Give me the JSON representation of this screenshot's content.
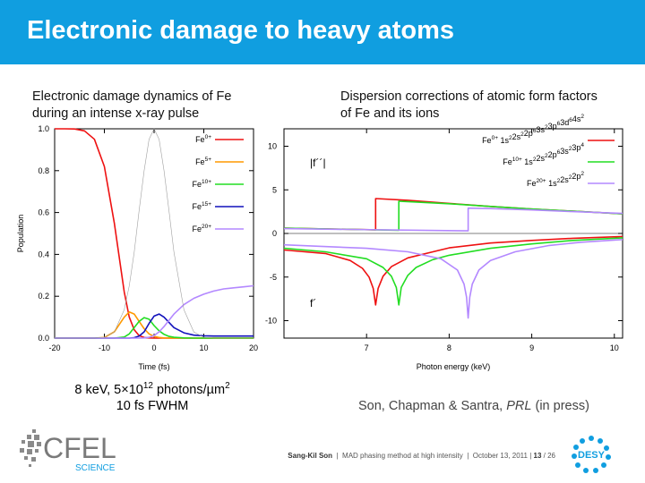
{
  "slide": {
    "title": "Electronic damage to heavy atoms",
    "left_caption": "Electronic damage dynamics of Fe during an intense x-ray pulse",
    "right_caption": "Dispersion corrections of atomic form factors of Fe and its ions",
    "beam_line1_pre": "8 keV, 5×10",
    "beam_line1_exp": "12",
    "beam_line1_post": " photons/µm",
    "beam_line1_sup2": "2",
    "beam_line2": "10 fs FWHM",
    "citation_pre": "Son, Chapman & Santra, ",
    "citation_journal": "PRL",
    "citation_post": " (in press)"
  },
  "footer": {
    "author": "Sang-Kil Son",
    "talk": "MAD phasing method at high intensity",
    "date": "October 13, 2011",
    "page": "13",
    "total": "/ 26"
  },
  "logos": {
    "cfel_top": "CFEL",
    "cfel_bottom": "SCIENCE",
    "desy": "DESY"
  },
  "colors": {
    "banner": "#109ee0",
    "fe0": "#ee1111",
    "fe5": "#ff9900",
    "fe10": "#22dd22",
    "fe15": "#1111bb",
    "fe20": "#b388ff",
    "pulse": "#a0a0a0"
  },
  "chart_data": [
    {
      "type": "line",
      "title": "",
      "xlabel": "Time (fs)",
      "ylabel": "Population",
      "xlim": [
        -20,
        20
      ],
      "ylim": [
        0,
        1
      ],
      "xticks": [
        "-20",
        "-10",
        "0",
        "10",
        "20"
      ],
      "yticks": [
        "0.0",
        "0.2",
        "0.4",
        "0.6",
        "0.8",
        "1.0"
      ],
      "legend_placement": "top-right",
      "x": [
        -20,
        -18,
        -16,
        -14,
        -12,
        -10,
        -8,
        -6,
        -5,
        -4,
        -3,
        -2,
        -1,
        0,
        1,
        2,
        3,
        4,
        6,
        8,
        10,
        12,
        14,
        16,
        18,
        20
      ],
      "series": [
        {
          "name": "0+",
          "color": "#ee1111",
          "values": [
            1,
            1,
            0.999,
            0.99,
            0.95,
            0.82,
            0.55,
            0.22,
            0.1,
            0.04,
            0.012,
            0.003,
            0.001,
            0,
            0,
            0,
            0,
            0,
            0,
            0,
            0,
            0,
            0,
            0,
            0,
            0
          ]
        },
        {
          "name": "5+",
          "color": "#ff9900",
          "values": [
            0,
            0,
            0,
            0,
            0,
            0.003,
            0.03,
            0.1,
            0.125,
            0.115,
            0.08,
            0.045,
            0.02,
            0.008,
            0.003,
            0.001,
            0,
            0,
            0,
            0,
            0,
            0,
            0,
            0,
            0,
            0
          ]
        },
        {
          "name": "10+",
          "color": "#22dd22",
          "values": [
            0,
            0,
            0,
            0,
            0,
            0,
            0,
            0.005,
            0.02,
            0.05,
            0.08,
            0.098,
            0.09,
            0.06,
            0.035,
            0.018,
            0.008,
            0.004,
            0.001,
            0,
            0,
            0,
            0,
            0,
            0,
            0
          ]
        },
        {
          "name": "15+",
          "color": "#1111bb",
          "values": [
            0,
            0,
            0,
            0,
            0,
            0,
            0,
            0,
            0,
            0.002,
            0.01,
            0.03,
            0.07,
            0.105,
            0.115,
            0.1,
            0.075,
            0.05,
            0.025,
            0.014,
            0.011,
            0.01,
            0.01,
            0.01,
            0.01,
            0.01
          ]
        },
        {
          "name": "20+",
          "color": "#b388ff",
          "values": [
            0,
            0,
            0,
            0,
            0,
            0,
            0,
            0,
            0,
            0,
            0,
            0.001,
            0.004,
            0.012,
            0.03,
            0.055,
            0.085,
            0.115,
            0.16,
            0.19,
            0.21,
            0.225,
            0.235,
            0.24,
            0.245,
            0.25
          ]
        },
        {
          "name": "",
          "color": "#a0a0a0",
          "values": [
            0,
            0,
            0,
            0,
            0,
            0.0039,
            0.029,
            0.136,
            0.25,
            0.41,
            0.61,
            0.8,
            0.95,
            1,
            0.95,
            0.8,
            0.61,
            0.41,
            0.136,
            0.029,
            0.0039,
            0,
            0,
            0,
            0,
            0
          ]
        }
      ]
    },
    {
      "type": "line",
      "title": "",
      "xlabel": "Photon energy (keV)",
      "ylabel": "",
      "xlim": [
        6,
        10.1
      ],
      "ylim": [
        -12,
        12
      ],
      "xticks": [
        "7",
        "8",
        "9",
        "10"
      ],
      "yticks": [
        "-10",
        "-5",
        "0",
        "5",
        "10"
      ],
      "legend_placement": "top-right",
      "annotations": [
        "|f´´|",
        "f´"
      ],
      "legend": [
        {
          "ion": "Fe",
          "charge": "0+",
          "config": [
            [
              "1s",
              "2"
            ],
            [
              "2s",
              "2"
            ],
            [
              "2p",
              "6"
            ],
            [
              "3s",
              "2"
            ],
            [
              "3p",
              "6"
            ],
            [
              "3d",
              "6"
            ],
            [
              "4s",
              "2"
            ]
          ],
          "color": "#ee1111"
        },
        {
          "ion": "Fe",
          "charge": "10+",
          "config": [
            [
              "1s",
              "2"
            ],
            [
              "2s",
              "2"
            ],
            [
              "2p",
              "6"
            ],
            [
              "3s",
              "2"
            ],
            [
              "3p",
              "4"
            ]
          ],
          "color": "#22dd22"
        },
        {
          "ion": "Fe",
          "charge": "20+",
          "config": [
            [
              "1s",
              "2"
            ],
            [
              "2s",
              "2"
            ],
            [
              "2p",
              "2"
            ]
          ],
          "color": "#b388ff"
        }
      ],
      "series": [
        {
          "name": "Fe0+ |f''|",
          "color": "#ee1111",
          "x": [
            6,
            7.11,
            7.11,
            7.5,
            8,
            8.5,
            9,
            9.5,
            10.1
          ],
          "values": [
            0.6,
            0.42,
            4.0,
            3.8,
            3.45,
            3.1,
            2.8,
            2.55,
            2.25
          ]
        },
        {
          "name": "Fe10+ |f''|",
          "color": "#22dd22",
          "x": [
            6,
            7.39,
            7.39,
            8,
            8.5,
            9,
            9.5,
            10.1
          ],
          "values": [
            0.6,
            0.37,
            3.7,
            3.4,
            3.1,
            2.8,
            2.55,
            2.25
          ]
        },
        {
          "name": "Fe20+ |f''|",
          "color": "#b388ff",
          "x": [
            6,
            8.23,
            8.23,
            8.5,
            9,
            9.5,
            10.1
          ],
          "values": [
            0.55,
            0.3,
            2.9,
            2.85,
            2.7,
            2.5,
            2.3
          ]
        },
        {
          "name": "Fe0+ f'",
          "color": "#ee1111",
          "x": [
            6,
            6.5,
            6.8,
            6.95,
            7.03,
            7.08,
            7.11,
            7.14,
            7.2,
            7.3,
            7.5,
            8,
            8.5,
            9,
            9.5,
            10.1
          ],
          "values": [
            -1.9,
            -2.3,
            -3.1,
            -4,
            -5,
            -6.3,
            -8.2,
            -6.3,
            -4.9,
            -3.8,
            -2.8,
            -1.65,
            -1.1,
            -0.8,
            -0.55,
            -0.35
          ]
        },
        {
          "name": "Fe10+ f'",
          "color": "#22dd22",
          "x": [
            6,
            6.5,
            7,
            7.2,
            7.3,
            7.36,
            7.39,
            7.42,
            7.5,
            7.6,
            7.8,
            8,
            8.5,
            9,
            9.5,
            10.1
          ],
          "values": [
            -1.7,
            -2.1,
            -2.9,
            -3.9,
            -4.9,
            -6.2,
            -8.2,
            -6.2,
            -4.8,
            -3.9,
            -3,
            -2.5,
            -1.7,
            -1.2,
            -0.8,
            -0.5
          ]
        },
        {
          "name": "Fe20+ f'",
          "color": "#b388ff",
          "x": [
            6,
            7,
            7.5,
            7.9,
            8.1,
            8.18,
            8.21,
            8.23,
            8.25,
            8.28,
            8.36,
            8.5,
            8.8,
            9.2,
            9.6,
            10.1
          ],
          "values": [
            -1.3,
            -1.7,
            -2.1,
            -2.9,
            -4.2,
            -5.8,
            -7.3,
            -9.7,
            -7.3,
            -5.8,
            -4.2,
            -3.1,
            -2.1,
            -1.4,
            -1,
            -0.7
          ]
        }
      ]
    }
  ]
}
